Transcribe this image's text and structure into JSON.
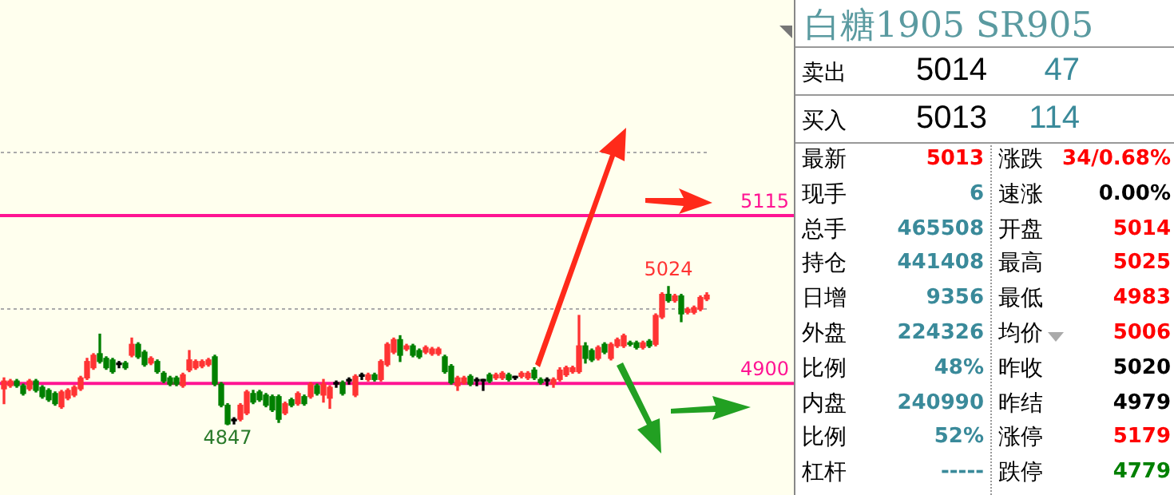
{
  "chart_data": [
    {
      "type": "candlestick",
      "categories": [
        null,
        null,
        null,
        null,
        null,
        null,
        null,
        null,
        null,
        null,
        null,
        null,
        null,
        null,
        null,
        null,
        null,
        null,
        null,
        null,
        null,
        null,
        null,
        null,
        null,
        null,
        null,
        null,
        null,
        null,
        null,
        null,
        null,
        null,
        null,
        null,
        null,
        null,
        null,
        null,
        null,
        null,
        null,
        null,
        null,
        null,
        null,
        null,
        null,
        null,
        null,
        null,
        null,
        null,
        null,
        null,
        null,
        null,
        null,
        null,
        null,
        null,
        null,
        null,
        null,
        null,
        null,
        null,
        null,
        null,
        null,
        null,
        null,
        null,
        null,
        null,
        null,
        null,
        null,
        null,
        null,
        null,
        null,
        null,
        null,
        null,
        null,
        null,
        null,
        null,
        null,
        null,
        null,
        null,
        null,
        null,
        null,
        null,
        null,
        null,
        null,
        null,
        null,
        null,
        null,
        null,
        null,
        null,
        null,
        null,
        null
      ],
      "ohlc": [
        [
          4893,
          4907,
          4874,
          4903
        ],
        [
          4897,
          4905,
          4895,
          4903
        ],
        [
          4903,
          4905,
          4895,
          4897
        ],
        [
          4897,
          4899,
          4885,
          4887
        ],
        [
          4893,
          4905,
          4891,
          4903
        ],
        [
          4903,
          4905,
          4889,
          4891
        ],
        [
          4895,
          4897,
          4881,
          4883
        ],
        [
          4891,
          4893,
          4877,
          4879
        ],
        [
          4887,
          4889,
          4872,
          4874
        ],
        [
          4870,
          4891,
          4868,
          4889
        ],
        [
          4881,
          4893,
          4879,
          4891
        ],
        [
          4885,
          4897,
          4883,
          4895
        ],
        [
          4893,
          4909,
          4891,
          4907
        ],
        [
          4907,
          4932,
          4905,
          4928
        ],
        [
          4920,
          4938,
          4918,
          4936
        ],
        [
          4938,
          4963,
          4926,
          4928
        ],
        [
          4932,
          4934,
          4918,
          4920
        ],
        [
          4930,
          4932,
          4913,
          4915
        ],
        [
          4924,
          4928,
          4920,
          4924
        ],
        [
          4926,
          4928,
          4918,
          4920
        ],
        [
          4936,
          4958,
          4934,
          4950
        ],
        [
          4950,
          4952,
          4932,
          4934
        ],
        [
          4940,
          4942,
          4922,
          4924
        ],
        [
          4926,
          4934,
          4924,
          4932
        ],
        [
          4928,
          4930,
          4913,
          4915
        ],
        [
          4913,
          4915,
          4901,
          4903
        ],
        [
          4907,
          4909,
          4897,
          4899
        ],
        [
          4907,
          4909,
          4897,
          4899
        ],
        [
          4897,
          4913,
          4895,
          4911
        ],
        [
          4917,
          4942,
          4915,
          4930
        ],
        [
          4920,
          4930,
          4918,
          4928
        ],
        [
          4922,
          4930,
          4920,
          4928
        ],
        [
          4924,
          4932,
          4922,
          4930
        ],
        [
          4934,
          4936,
          4897,
          4899
        ],
        [
          4899,
          4901,
          4870,
          4872
        ],
        [
          4872,
          4874,
          4847,
          4848
        ],
        [
          4852,
          4856,
          4848,
          4852
        ],
        [
          4854,
          4874,
          4852,
          4872
        ],
        [
          4862,
          4891,
          4860,
          4889
        ],
        [
          4887,
          4891,
          4874,
          4876
        ],
        [
          4889,
          4891,
          4877,
          4879
        ],
        [
          4885,
          4887,
          4870,
          4872
        ],
        [
          4883,
          4885,
          4864,
          4866
        ],
        [
          4883,
          4885,
          4850,
          4854
        ],
        [
          4862,
          4876,
          4860,
          4874
        ],
        [
          4879,
          4881,
          4870,
          4872
        ],
        [
          4874,
          4889,
          4872,
          4887
        ],
        [
          4883,
          4885,
          4872,
          4874
        ],
        [
          4883,
          4901,
          4881,
          4899
        ],
        [
          4897,
          4899,
          4885,
          4887
        ],
        [
          4885,
          4905,
          4876,
          4899
        ],
        [
          4881,
          4897,
          4868,
          4895
        ],
        [
          4899,
          4903,
          4895,
          4899
        ],
        [
          4901,
          4903,
          4885,
          4887
        ],
        [
          4903,
          4907,
          4899,
          4903
        ],
        [
          4885,
          4911,
          4883,
          4909
        ],
        [
          4909,
          4913,
          4905,
          4909
        ],
        [
          4905,
          4913,
          4903,
          4911
        ],
        [
          4911,
          4913,
          4903,
          4905
        ],
        [
          4905,
          4930,
          4903,
          4928
        ],
        [
          4924,
          4952,
          4922,
          4950
        ],
        [
          4940,
          4958,
          4938,
          4956
        ],
        [
          4956,
          4961,
          4928,
          4936
        ],
        [
          4944,
          4950,
          4942,
          4948
        ],
        [
          4948,
          4950,
          4934,
          4936
        ],
        [
          4942,
          4944,
          4932,
          4934
        ],
        [
          4940,
          4948,
          4938,
          4946
        ],
        [
          4938,
          4946,
          4936,
          4944
        ],
        [
          4938,
          4946,
          4936,
          4944
        ],
        [
          4934,
          4936,
          4913,
          4915
        ],
        [
          4922,
          4924,
          4899,
          4901
        ],
        [
          4897,
          4909,
          4891,
          4907
        ],
        [
          4901,
          4909,
          4899,
          4907
        ],
        [
          4909,
          4911,
          4897,
          4899
        ],
        [
          4903,
          4907,
          4897,
          4903
        ],
        [
          4903,
          4905,
          4891,
          4903
        ],
        [
          4911,
          4913,
          4901,
          4903
        ],
        [
          4907,
          4913,
          4905,
          4911
        ],
        [
          4907,
          4915,
          4905,
          4913
        ],
        [
          4911,
          4913,
          4903,
          4905
        ],
        [
          4907,
          4909,
          4905,
          4907
        ],
        [
          4909,
          4915,
          4907,
          4913
        ],
        [
          4907,
          4915,
          4905,
          4913
        ],
        [
          4917,
          4920,
          4905,
          4907
        ],
        [
          4905,
          4907,
          4899,
          4901
        ],
        [
          4903,
          4907,
          4897,
          4903
        ],
        [
          4899,
          4907,
          4895,
          4905
        ],
        [
          4905,
          4920,
          4903,
          4917
        ],
        [
          4911,
          4922,
          4909,
          4920
        ],
        [
          4915,
          4922,
          4913,
          4920
        ],
        [
          4915,
          4987,
          4913,
          4948
        ],
        [
          4948,
          4952,
          4926,
          4932
        ],
        [
          4942,
          4944,
          4928,
          4930
        ],
        [
          4932,
          4948,
          4930,
          4946
        ],
        [
          4950,
          4952,
          4938,
          4940
        ],
        [
          4932,
          4952,
          4930,
          4950
        ],
        [
          4948,
          4958,
          4946,
          4956
        ],
        [
          4948,
          4963,
          4946,
          4961
        ],
        [
          4952,
          4954,
          4948,
          4950
        ],
        [
          4952,
          4954,
          4944,
          4946
        ],
        [
          4946,
          4954,
          4944,
          4952
        ],
        [
          4954,
          4956,
          4946,
          4948
        ],
        [
          4950,
          4989,
          4948,
          4987
        ],
        [
          4985,
          5016,
          4983,
          5014
        ],
        [
          5014,
          5024,
          5004,
          5006
        ],
        [
          5006,
          5014,
          5004,
          5012
        ],
        [
          5012,
          5014,
          4979,
          4989
        ],
        [
          4991,
          4997,
          4989,
          4995
        ],
        [
          4991,
          4999,
          4989,
          4997
        ],
        [
          4995,
          5012,
          4993,
          5010
        ],
        [
          5008,
          5016,
          5006,
          5013
        ]
      ],
      "colors": [
        "#ff3333",
        "#ff3333",
        "#008000",
        "#008000",
        "#ff3333",
        "#008000",
        "#008000",
        "#008000",
        "#008000",
        "#ff3333",
        "#ff3333",
        "#ff3333",
        "#ff3333",
        "#ff3333",
        "#ff3333",
        "#008000",
        "#008000",
        "#008000",
        "#000000",
        "#008000",
        "#ff3333",
        "#008000",
        "#008000",
        "#ff3333",
        "#008000",
        "#008000",
        "#008000",
        "#008000",
        "#ff3333",
        "#ff3333",
        "#ff3333",
        "#ff3333",
        "#ff3333",
        "#008000",
        "#008000",
        "#008000",
        "#000000",
        "#ff3333",
        "#ff3333",
        "#008000",
        "#008000",
        "#008000",
        "#008000",
        "#008000",
        "#ff3333",
        "#008000",
        "#ff3333",
        "#008000",
        "#ff3333",
        "#008000",
        "#ff3333",
        "#ff3333",
        "#000000",
        "#008000",
        "#000000",
        "#ff3333",
        "#000000",
        "#ff3333",
        "#008000",
        "#ff3333",
        "#ff3333",
        "#ff3333",
        "#008000",
        "#ff3333",
        "#008000",
        "#008000",
        "#ff3333",
        "#ff3333",
        "#ff3333",
        "#008000",
        "#008000",
        "#ff3333",
        "#ff3333",
        "#008000",
        "#000000",
        "#000000",
        "#008000",
        "#ff3333",
        "#ff3333",
        "#008000",
        "#000000",
        "#ff3333",
        "#ff3333",
        "#008000",
        "#008000",
        "#000000",
        "#ff3333",
        "#ff3333",
        "#ff3333",
        "#ff3333",
        "#ff3333",
        "#008000",
        "#008000",
        "#ff3333",
        "#008000",
        "#ff3333",
        "#ff3333",
        "#ff3333",
        "#008000",
        "#008000",
        "#ff3333",
        "#008000",
        "#ff3333",
        "#ff3333",
        "#008000",
        "#ff3333",
        "#008000",
        "#ff3333",
        "#ff3333",
        "#ff3333",
        "#ff3333"
      ],
      "ylim": [
        4757,
        5391
      ],
      "yticks": [
        {
          "value": 5196,
          "label": null
        },
        {
          "value": 4995,
          "label": null
        }
      ],
      "grid": "y",
      "tick_labels": false,
      "legend": false,
      "ref_lines": [
        {
          "axis": "y",
          "value": 5115,
          "label": "5115",
          "color": "#ff1493"
        },
        {
          "axis": "y",
          "value": 4900,
          "label": "4900",
          "color": "#ff1493"
        }
      ],
      "annotations": [
        {
          "text": "5024",
          "y": 5024
        },
        {
          "text": "4847",
          "y": 4847
        }
      ]
    },
    {
      "type": "other",
      "title": "白糖1905 SR905",
      "annotations": [
        "卖出",
        "5014",
        "47",
        "买入",
        "5013",
        "114",
        "最新",
        "5013",
        "涨跌",
        "34/0.68%",
        "现手",
        "6",
        "速涨",
        "0.00%",
        "总手",
        "465508",
        "开盘",
        "5014",
        "持仓",
        "441408",
        "最高",
        "5025",
        "日增",
        "9356",
        "最低",
        "4983",
        "外盘",
        "224326",
        "均价",
        "5006",
        "比例",
        "48%",
        "昨收",
        "5020",
        "内盘",
        "240990",
        "昨结",
        "4979",
        "比例",
        "52%",
        "涨停",
        "5179",
        "杠杆",
        "-----",
        "跌停",
        "4779"
      ],
      "colors": [
        "#000000",
        "#000000",
        "#3a8a9a",
        "#000000",
        "#000000",
        "#3a8a9a",
        "#000000",
        "#ff0000",
        "#000000",
        "#ff0000",
        "#000000",
        "#3a8a9a",
        "#000000",
        "#000000",
        "#000000",
        "#3a8a9a",
        "#000000",
        "#ff0000",
        "#000000",
        "#3a8a9a",
        "#000000",
        "#ff0000",
        "#000000",
        "#3a8a9a",
        "#000000",
        "#ff0000",
        "#000000",
        "#3a8a9a",
        "#000000",
        "#ff0000",
        "#000000",
        "#3a8a9a",
        "#000000",
        "#000000",
        "#000000",
        "#3a8a9a",
        "#000000",
        "#000000",
        "#000000",
        "#3a8a9a",
        "#000000",
        "#ff0000",
        "#000000",
        "#3a8a9a",
        "#000000",
        "#008000"
      ]
    }
  ]
}
